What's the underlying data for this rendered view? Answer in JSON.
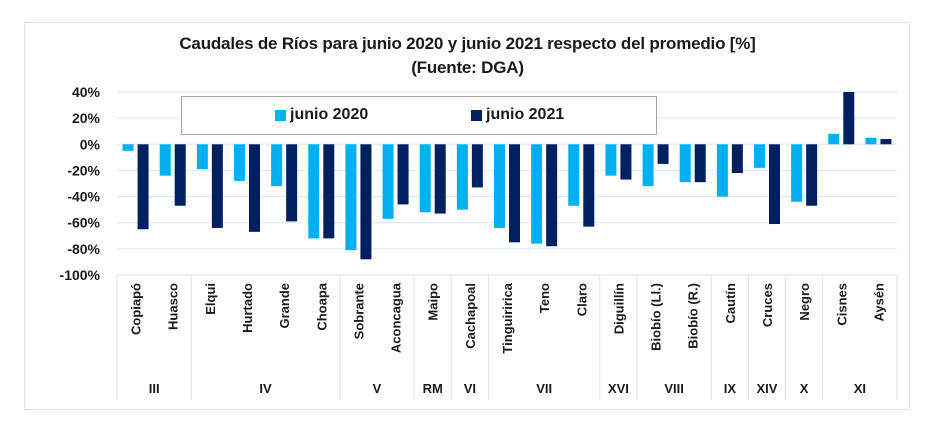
{
  "chart_data": {
    "type": "bar",
    "title": "Caudales de Ríos para junio 2020 y junio 2021 respecto del promedio [%]",
    "subtitle": "(Fuente: DGA)",
    "xlabel": "",
    "ylabel": "",
    "ylim": [
      -100,
      40
    ],
    "yticks": [
      40,
      20,
      0,
      -20,
      -40,
      -60,
      -80,
      -100
    ],
    "ytick_labels": [
      "40%",
      "20%",
      "0%",
      "-20%",
      "-40%",
      "-60%",
      "-80%",
      "-100%"
    ],
    "grid": true,
    "legend_position": "top-center",
    "categories": [
      "Copiapó",
      "Huasco",
      "Elqui",
      "Hurtado",
      "Grande",
      "Choapa",
      "Sobrante",
      "Aconcagua",
      "Maipo",
      "Cachapoal",
      "Tinguiririca",
      "Teno",
      "Claro",
      "Diguillín",
      "Biobío (Ll.)",
      "Biobío (R.)",
      "Cautín",
      "Cruces",
      "Negro",
      "Cisnes",
      "Aysén"
    ],
    "regions": [
      {
        "label": "III",
        "count": 2
      },
      {
        "label": "IV",
        "count": 4
      },
      {
        "label": "V",
        "count": 2
      },
      {
        "label": "RM",
        "count": 1
      },
      {
        "label": "VI",
        "count": 1
      },
      {
        "label": "VII",
        "count": 3
      },
      {
        "label": "XVI",
        "count": 1
      },
      {
        "label": "VIII",
        "count": 2
      },
      {
        "label": "IX",
        "count": 1
      },
      {
        "label": "XIV",
        "count": 1
      },
      {
        "label": "X",
        "count": 1
      },
      {
        "label": "XI",
        "count": 2
      }
    ],
    "series": [
      {
        "name": "junio 2020",
        "color": "#00b0f0",
        "values": [
          -5,
          -24,
          -19,
          -28,
          -32,
          -72,
          -81,
          -57,
          -52,
          -50,
          -64,
          -76,
          -47,
          -24,
          -32,
          -29,
          -40,
          -18,
          -44,
          8,
          5
        ]
      },
      {
        "name": "junio 2021",
        "color": "#002060",
        "values": [
          -65,
          -47,
          -64,
          -67,
          -59,
          -72,
          -88,
          -46,
          -53,
          -33,
          -75,
          -78,
          -63,
          -27,
          -15,
          -29,
          -22,
          -61,
          -47,
          40,
          4
        ]
      }
    ]
  }
}
